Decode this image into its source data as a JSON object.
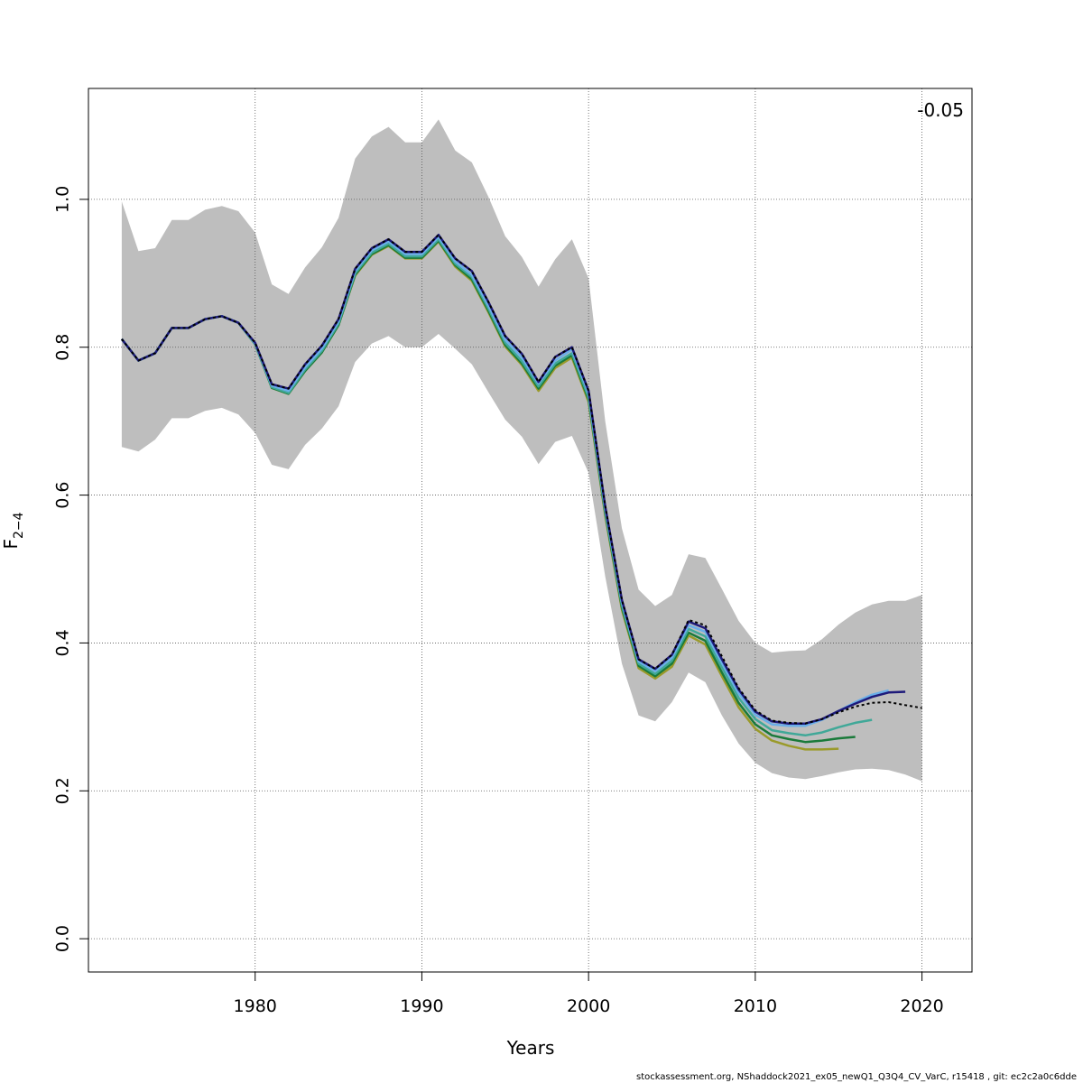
{
  "chart_data": {
    "type": "line",
    "title": "",
    "xlabel": "Years",
    "ylabel_main": "F",
    "ylabel_sub": "2−4",
    "xlim": [
      1970.0,
      2023.0
    ],
    "ylim": [
      -0.045,
      1.15
    ],
    "xticks": [
      1980,
      1990,
      2000,
      2010,
      2020
    ],
    "yticks": [
      0.0,
      0.2,
      0.4,
      0.6,
      0.8,
      1.0
    ],
    "ytick_labels": [
      "0.0",
      "0.2",
      "0.4",
      "0.6",
      "0.8",
      "1.0"
    ],
    "grid": true,
    "annotation": "-0.05",
    "footer": "stockassessment.org, NShaddock2021_ex05_newQ1_Q3Q4_CV_VarC, r15418 , git: ec2c2a0c6dde",
    "band": {
      "color": "#bebebe",
      "x": [
        1972,
        1973,
        1974,
        1975,
        1976,
        1977,
        1978,
        1979,
        1980,
        1981,
        1982,
        1983,
        1984,
        1985,
        1986,
        1987,
        1988,
        1989,
        1990,
        1991,
        1992,
        1993,
        1994,
        1995,
        1996,
        1997,
        1998,
        1999,
        2000,
        2001,
        2002,
        2003,
        2004,
        2005,
        2006,
        2007,
        2008,
        2009,
        2010,
        2011,
        2012,
        2013,
        2014,
        2015,
        2016,
        2017,
        2018,
        2019,
        2020
      ],
      "upper": [
        0.997,
        0.93,
        0.934,
        0.972,
        0.972,
        0.986,
        0.991,
        0.984,
        0.955,
        0.885,
        0.872,
        0.908,
        0.935,
        0.975,
        1.055,
        1.085,
        1.098,
        1.077,
        1.077,
        1.108,
        1.066,
        1.05,
        1.003,
        0.95,
        0.922,
        0.882,
        0.919,
        0.946,
        0.893,
        0.7,
        0.555,
        0.472,
        0.45,
        0.465,
        0.52,
        0.515,
        0.473,
        0.43,
        0.4,
        0.387,
        0.389,
        0.39,
        0.405,
        0.425,
        0.441,
        0.452,
        0.457,
        0.457,
        0.465
      ],
      "lower": [
        0.665,
        0.659,
        0.675,
        0.704,
        0.704,
        0.714,
        0.718,
        0.709,
        0.684,
        0.641,
        0.635,
        0.668,
        0.69,
        0.72,
        0.78,
        0.805,
        0.815,
        0.8,
        0.8,
        0.818,
        0.798,
        0.777,
        0.739,
        0.702,
        0.679,
        0.642,
        0.672,
        0.68,
        0.63,
        0.49,
        0.372,
        0.302,
        0.294,
        0.32,
        0.36,
        0.347,
        0.302,
        0.264,
        0.238,
        0.224,
        0.218,
        0.216,
        0.22,
        0.225,
        0.229,
        0.23,
        0.228,
        0.222,
        0.213
      ]
    },
    "x": [
      1972,
      1973,
      1974,
      1975,
      1976,
      1977,
      1978,
      1979,
      1980,
      1981,
      1982,
      1983,
      1984,
      1985,
      1986,
      1987,
      1988,
      1989,
      1990,
      1991,
      1992,
      1993,
      1994,
      1995,
      1996,
      1997,
      1998,
      1999,
      2000,
      2001,
      2002,
      2003,
      2004,
      2005,
      2006,
      2007,
      2008,
      2009,
      2010,
      2011,
      2012,
      2013,
      2014,
      2015,
      2016,
      2017,
      2018,
      2019,
      2020
    ],
    "series": [
      {
        "color": "#9a9a2a",
        "width": 2.5,
        "dashed": false,
        "values": [
          0.811,
          0.782,
          0.792,
          0.826,
          0.826,
          0.838,
          0.842,
          0.833,
          0.804,
          0.745,
          0.737,
          0.768,
          0.793,
          0.83,
          0.897,
          0.925,
          0.937,
          0.92,
          0.92,
          0.943,
          0.909,
          0.89,
          0.847,
          0.801,
          0.776,
          0.741,
          0.772,
          0.786,
          0.726,
          0.572,
          0.445,
          0.366,
          0.352,
          0.368,
          0.41,
          0.398,
          0.355,
          0.313,
          0.284,
          0.268,
          0.261,
          0.256,
          0.256,
          0.257,
          null,
          null,
          null,
          null,
          null
        ]
      },
      {
        "color": "#1a7a3a",
        "width": 2.5,
        "dashed": false,
        "values": [
          0.811,
          0.782,
          0.792,
          0.826,
          0.826,
          0.838,
          0.842,
          0.833,
          0.804,
          0.745,
          0.737,
          0.768,
          0.793,
          0.83,
          0.898,
          0.926,
          0.938,
          0.921,
          0.921,
          0.944,
          0.911,
          0.892,
          0.849,
          0.803,
          0.778,
          0.744,
          0.775,
          0.789,
          0.729,
          0.575,
          0.448,
          0.369,
          0.355,
          0.372,
          0.414,
          0.403,
          0.36,
          0.319,
          0.29,
          0.275,
          0.27,
          0.266,
          0.268,
          0.271,
          0.273,
          null,
          null,
          null,
          null
        ]
      },
      {
        "color": "#40a898",
        "width": 2.5,
        "dashed": false,
        "values": [
          0.811,
          0.782,
          0.792,
          0.826,
          0.826,
          0.838,
          0.842,
          0.833,
          0.804,
          0.746,
          0.738,
          0.77,
          0.795,
          0.832,
          0.9,
          0.928,
          0.94,
          0.923,
          0.923,
          0.946,
          0.913,
          0.895,
          0.852,
          0.806,
          0.781,
          0.747,
          0.778,
          0.792,
          0.732,
          0.578,
          0.451,
          0.372,
          0.358,
          0.376,
          0.419,
          0.409,
          0.367,
          0.326,
          0.297,
          0.282,
          0.278,
          0.275,
          0.279,
          0.286,
          0.292,
          0.296,
          null,
          null,
          null
        ]
      },
      {
        "color": "#6aaee8",
        "width": 2.5,
        "dashed": false,
        "values": [
          0.811,
          0.782,
          0.792,
          0.826,
          0.826,
          0.838,
          0.842,
          0.833,
          0.805,
          0.748,
          0.741,
          0.773,
          0.798,
          0.835,
          0.903,
          0.931,
          0.943,
          0.926,
          0.926,
          0.949,
          0.916,
          0.898,
          0.856,
          0.81,
          0.786,
          0.751,
          0.782,
          0.797,
          0.737,
          0.582,
          0.455,
          0.375,
          0.362,
          0.38,
          0.424,
          0.415,
          0.373,
          0.332,
          0.303,
          0.29,
          0.288,
          0.288,
          0.296,
          0.308,
          0.32,
          0.33,
          0.336,
          null,
          null
        ]
      },
      {
        "color": "#1e1a7a",
        "width": 2.5,
        "dashed": false,
        "values": [
          0.811,
          0.782,
          0.792,
          0.826,
          0.826,
          0.838,
          0.842,
          0.833,
          0.806,
          0.75,
          0.744,
          0.777,
          0.802,
          0.838,
          0.906,
          0.934,
          0.946,
          0.929,
          0.929,
          0.952,
          0.92,
          0.903,
          0.861,
          0.815,
          0.791,
          0.753,
          0.787,
          0.8,
          0.741,
          0.585,
          0.458,
          0.378,
          0.365,
          0.384,
          0.429,
          0.42,
          0.378,
          0.337,
          0.307,
          0.294,
          0.291,
          0.291,
          0.297,
          0.308,
          0.318,
          0.327,
          0.333,
          0.334,
          null
        ]
      },
      {
        "color": "#000000",
        "width": 2.0,
        "dashed": true,
        "values": [
          0.811,
          0.782,
          0.792,
          0.826,
          0.826,
          0.838,
          0.842,
          0.833,
          0.806,
          0.75,
          0.744,
          0.777,
          0.802,
          0.838,
          0.906,
          0.934,
          0.946,
          0.929,
          0.929,
          0.952,
          0.92,
          0.903,
          0.861,
          0.815,
          0.791,
          0.753,
          0.787,
          0.8,
          0.741,
          0.585,
          0.458,
          0.378,
          0.365,
          0.384,
          0.431,
          0.424,
          0.382,
          0.339,
          0.309,
          0.295,
          0.292,
          0.291,
          0.297,
          0.306,
          0.314,
          0.319,
          0.32,
          0.316,
          0.312
        ]
      }
    ]
  }
}
